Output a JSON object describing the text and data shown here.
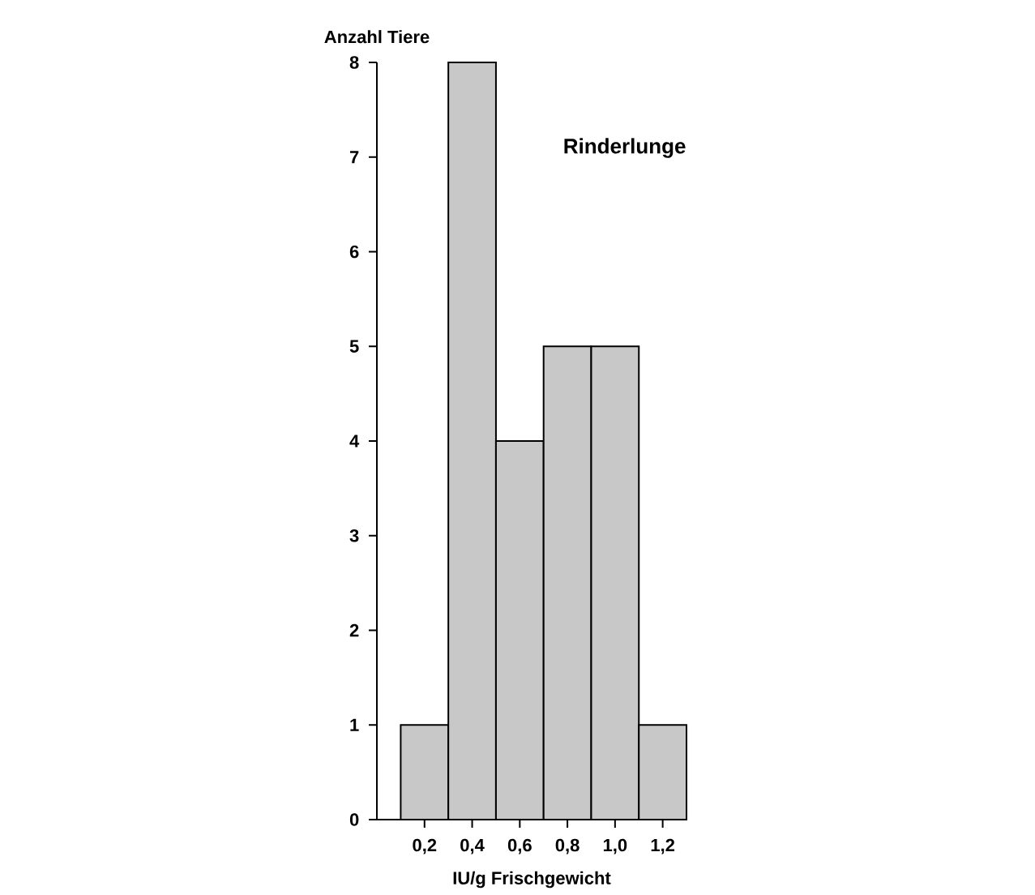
{
  "chart_data": {
    "type": "histogram",
    "ylabel": "Anzahl Tiere",
    "xlabel": "IU/g Frischgewicht",
    "annotations": [
      "Rinderlunge"
    ],
    "bins": [
      0.1,
      0.3,
      0.5,
      0.7,
      0.9,
      1.1,
      1.3
    ],
    "values": [
      1,
      8,
      4,
      5,
      5,
      1
    ],
    "color": "#c8c8c8",
    "xlim": [
      0,
      1.3
    ],
    "ylim": [
      0,
      8
    ],
    "xticks": [
      {
        "value": 0.2,
        "label": "0,2"
      },
      {
        "value": 0.4,
        "label": "0,4"
      },
      {
        "value": 0.6,
        "label": "0,6"
      },
      {
        "value": 0.8,
        "label": "0,8"
      },
      {
        "value": 1.0,
        "label": "1,0"
      },
      {
        "value": 1.2,
        "label": "1,2"
      }
    ],
    "yticks": [
      0,
      1,
      2,
      3,
      4,
      5,
      6,
      7,
      8
    ],
    "grid": false
  }
}
